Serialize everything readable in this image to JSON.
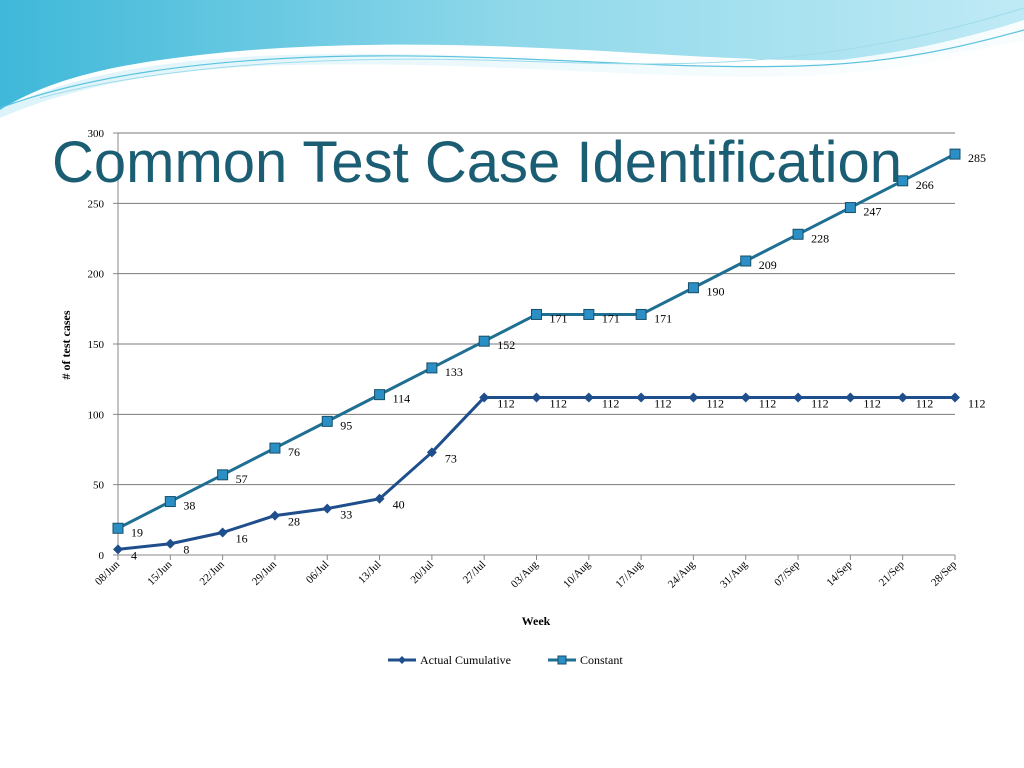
{
  "slide": {
    "title": "Common Test Case Identification"
  },
  "colors": {
    "actual": "#1f4e8c",
    "constant": "#1f6f93",
    "constant_marker": "#2b8ec4",
    "gridline": "#7a7a7a",
    "title": "#1b5e74"
  },
  "chart_data": {
    "type": "line",
    "xlabel": "Week",
    "ylabel": "# of test cases",
    "ylim": [
      0,
      300
    ],
    "yticks": [
      0,
      50,
      100,
      150,
      200,
      250,
      300
    ],
    "grid": true,
    "legend_position": "bottom",
    "categories": [
      "08/Jun",
      "15/Jun",
      "22/Jun",
      "29/Jun",
      "06/Jul",
      "13/Jul",
      "20/Jul",
      "27/Jul",
      "03/Aug",
      "10/Aug",
      "17/Aug",
      "24/Aug",
      "31/Aug",
      "07/Sep",
      "14/Sep",
      "21/Sep",
      "28/Sep"
    ],
    "series": [
      {
        "name": "Actual Cumulative",
        "marker": "diamond",
        "values": [
          4,
          8,
          16,
          28,
          33,
          40,
          73,
          112,
          112,
          112,
          112,
          112,
          112,
          112,
          112,
          112,
          112
        ]
      },
      {
        "name": "Constant",
        "marker": "square",
        "values": [
          19,
          38,
          57,
          76,
          95,
          114,
          133,
          152,
          171,
          171,
          171,
          190,
          209,
          228,
          247,
          266,
          285
        ]
      }
    ]
  }
}
